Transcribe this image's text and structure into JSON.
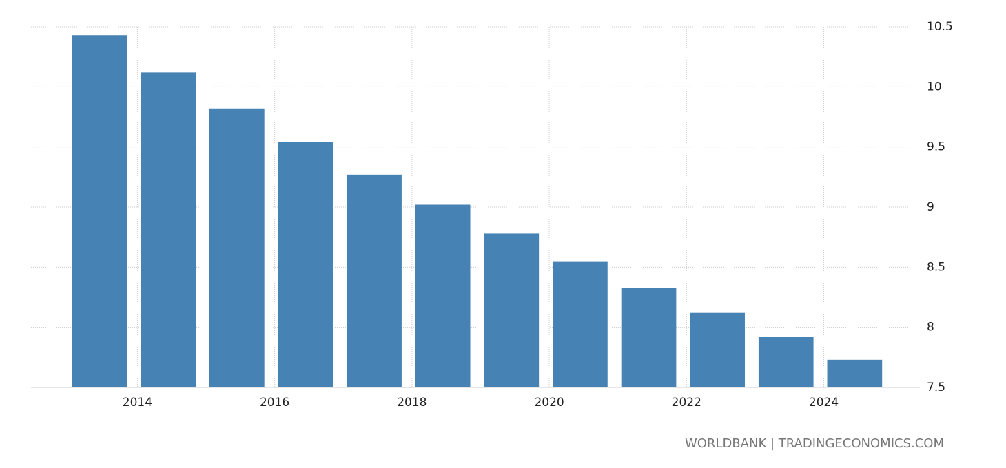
{
  "chart_data": {
    "type": "bar",
    "x": [
      2013,
      2014,
      2015,
      2016,
      2017,
      2018,
      2019,
      2020,
      2021,
      2022,
      2023,
      2024
    ],
    "values": [
      10.43,
      10.12,
      9.82,
      9.54,
      9.27,
      9.02,
      8.78,
      8.55,
      8.33,
      8.12,
      7.92,
      7.73
    ],
    "color": "#4682b4",
    "xlim": [
      2012.45,
      2025.4
    ],
    "xticks": [
      2014,
      2016,
      2018,
      2020,
      2022,
      2024
    ],
    "ylim": [
      7.5,
      10.5
    ],
    "yticks": [
      7.5,
      8,
      8.5,
      9,
      9.5,
      10,
      10.5
    ],
    "grid": true,
    "source": "WORLDBANK | TRADINGECONOMICS.COM"
  }
}
